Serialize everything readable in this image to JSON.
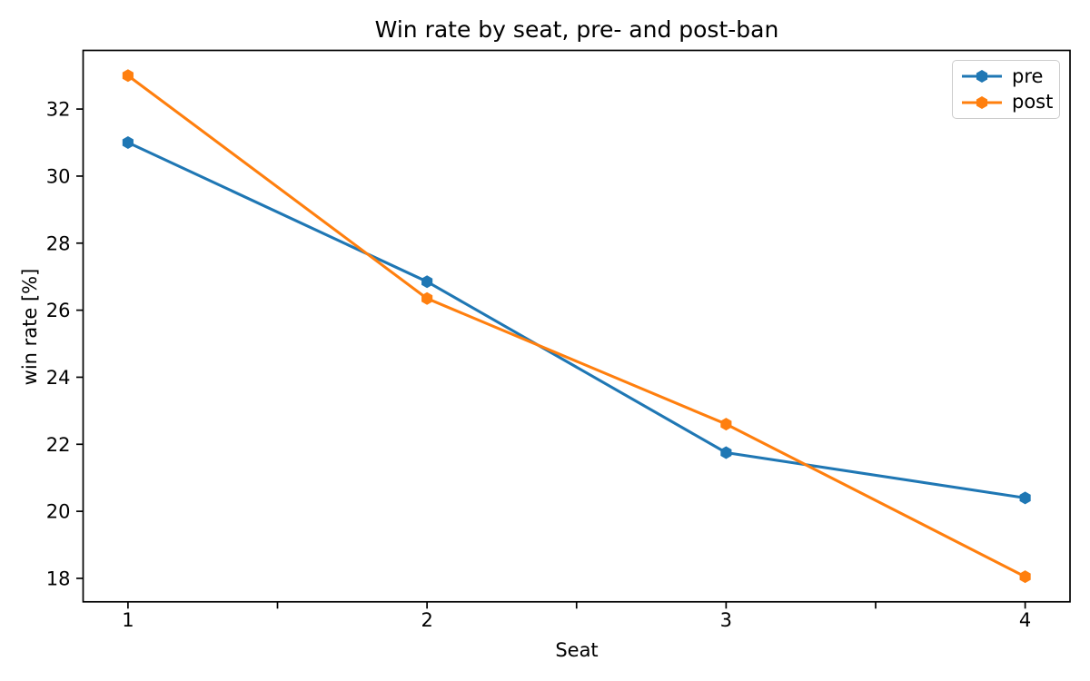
{
  "chart_data": {
    "type": "line",
    "title": "Win rate by seat, pre- and post-ban",
    "xlabel": "Seat",
    "ylabel": "win rate [%]",
    "x": [
      1,
      2,
      3,
      4
    ],
    "series": [
      {
        "name": "pre",
        "color": "#1f77b4",
        "marker": "hexagon",
        "values": [
          31.0,
          26.85,
          21.75,
          20.4
        ]
      },
      {
        "name": "post",
        "color": "#ff7f0e",
        "marker": "hexagon",
        "values": [
          33.0,
          26.35,
          22.6,
          18.05
        ]
      }
    ],
    "xlim": [
      0.85,
      4.15
    ],
    "ylim": [
      17.3,
      33.75
    ],
    "xticks": {
      "major": [
        1,
        2,
        3,
        4
      ],
      "minor": [
        1.5,
        2.5,
        3.5
      ]
    },
    "yticks": [
      18,
      20,
      22,
      24,
      26,
      28,
      30,
      32
    ],
    "grid": false,
    "legend": {
      "position": "upper right",
      "entries": [
        "pre",
        "post"
      ]
    },
    "axis_color": "#000000",
    "background_color": "#ffffff"
  }
}
